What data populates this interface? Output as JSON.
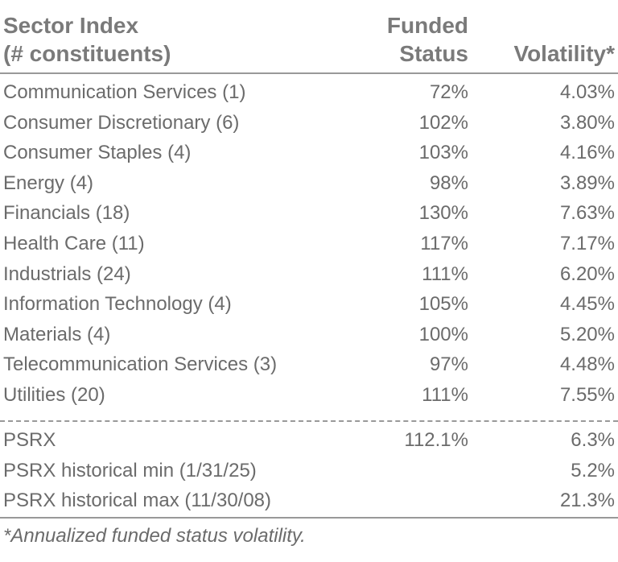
{
  "header": [
    [
      "Sector Index",
      "(# constituents)"
    ],
    [
      "Funded",
      "Status"
    ],
    [
      "Volatility*"
    ]
  ],
  "rows": [
    [
      "Communication Services (1)",
      "72%",
      "4.03%"
    ],
    [
      "Consumer Discretionary (6)",
      "102%",
      "3.80%"
    ],
    [
      "Consumer Staples (4)",
      "103%",
      "4.16%"
    ],
    [
      "Energy (4)",
      "98%",
      "3.89%"
    ],
    [
      "Financials (18)",
      "130%",
      "7.63%"
    ],
    [
      "Health Care (11)",
      "117%",
      "7.17%"
    ],
    [
      "Industrials (24)",
      "111%",
      "6.20%"
    ],
    [
      "Information Technology (4)",
      "105%",
      "4.45%"
    ],
    [
      "Materials (4)",
      "100%",
      "5.20%"
    ],
    [
      "Telecommunication Services (3)",
      "97%",
      "4.48%"
    ],
    [
      "Utilities (20)",
      "111%",
      "7.55%"
    ]
  ],
  "summary": [
    [
      "PSRX",
      "112.1%",
      "6.3%"
    ],
    [
      "PSRX historical min (1/31/25)",
      null,
      "5.2%"
    ],
    [
      "PSRX historical max (11/30/08)",
      null,
      "21.3%"
    ]
  ],
  "footnote": "*Annualized funded status volatility."
}
